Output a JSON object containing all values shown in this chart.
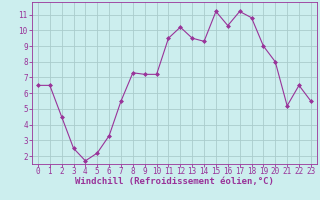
{
  "x": [
    0,
    1,
    2,
    3,
    4,
    5,
    6,
    7,
    8,
    9,
    10,
    11,
    12,
    13,
    14,
    15,
    16,
    17,
    18,
    19,
    20,
    21,
    22,
    23
  ],
  "y": [
    6.5,
    6.5,
    4.5,
    2.5,
    1.7,
    2.2,
    3.3,
    5.5,
    7.3,
    7.2,
    7.2,
    9.5,
    10.2,
    9.5,
    9.3,
    11.2,
    10.3,
    11.2,
    10.8,
    9.0,
    8.0,
    5.2,
    6.5,
    5.5
  ],
  "line_color": "#993399",
  "marker_color": "#993399",
  "bg_color": "#cceeee",
  "grid_color": "#aacccc",
  "xlabel": "Windchill (Refroidissement éolien,°C)",
  "xlabel_color": "#993399",
  "tick_color": "#993399",
  "spine_color": "#993399",
  "ylim": [
    1.5,
    11.8
  ],
  "xlim": [
    -0.5,
    23.5
  ],
  "yticks": [
    2,
    3,
    4,
    5,
    6,
    7,
    8,
    9,
    10,
    11
  ],
  "xticks": [
    0,
    1,
    2,
    3,
    4,
    5,
    6,
    7,
    8,
    9,
    10,
    11,
    12,
    13,
    14,
    15,
    16,
    17,
    18,
    19,
    20,
    21,
    22,
    23
  ],
  "tick_fontsize": 5.5,
  "xlabel_fontsize": 6.5
}
